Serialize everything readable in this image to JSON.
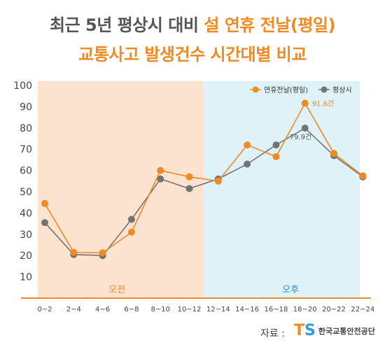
{
  "title": {
    "line1_part1": "최근 5년 평상시 대비 ",
    "line1_part2": "설 연휴 전날(평일)",
    "line2": "교통사고 발생건수 시간대별 비교"
  },
  "source": {
    "label": "자료 :",
    "logo_mark_t": "T",
    "logo_mark_s": "S",
    "org_name": "한국교통안전공단"
  },
  "colors": {
    "orange": "#f08a24",
    "gray": "#737373",
    "am_bg": "#fce3cf",
    "pm_bg": "#dff2f8",
    "pm_text": "#2a8fc8"
  },
  "chart_data": {
    "type": "line",
    "categories": [
      "0~2",
      "2~4",
      "4~6",
      "6~8",
      "8~10",
      "10~12",
      "12~14",
      "14~16",
      "16~18",
      "18~20",
      "20~22",
      "22~24"
    ],
    "series": [
      {
        "name": "연휴전날(평일)",
        "values": [
          44.5,
          21.5,
          21.3,
          31,
          60,
          57,
          55,
          72,
          66.5,
          91.6,
          68,
          57.5
        ]
      },
      {
        "name": "평상시",
        "values": [
          35.5,
          20.5,
          20,
          37,
          56,
          51.5,
          56,
          63,
          72,
          79.9,
          67,
          57
        ]
      }
    ],
    "annotations": [
      {
        "series": 0,
        "index": 9,
        "text": "91.6건"
      },
      {
        "series": 1,
        "index": 9,
        "text": "79.9건"
      }
    ],
    "regions": [
      {
        "label": "오전",
        "from_index": 0,
        "to_index": 5
      },
      {
        "label": "오후",
        "from_index": 6,
        "to_index": 11
      }
    ],
    "yticks": [
      10,
      20,
      30,
      40,
      50,
      60,
      70,
      80,
      90,
      100
    ],
    "ylim": [
      0,
      100
    ],
    "legend_position": "top-right"
  }
}
